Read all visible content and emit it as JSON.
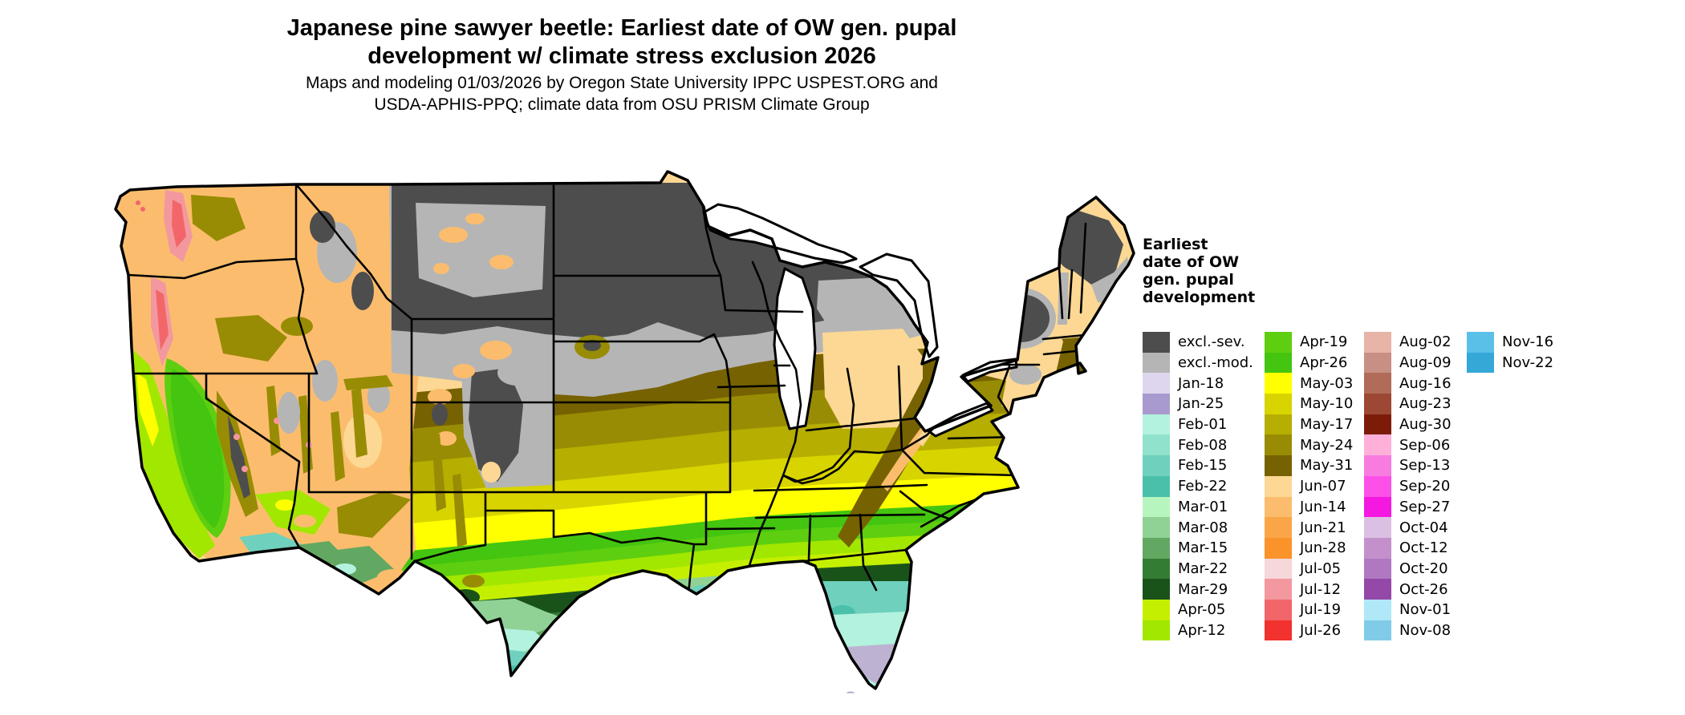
{
  "title": {
    "line1": "Japanese pine sawyer beetle: Earliest date of OW gen. pupal",
    "line2": "development w/ climate stress exclusion 2026"
  },
  "subtitle": {
    "line1": "Maps and modeling 01/03/2026 by Oregon State University IPPC USPEST.ORG and",
    "line2": "USDA-APHIS-PPQ; climate data from OSU PRISM Climate Group"
  },
  "legend": {
    "title_lines": [
      "Earliest",
      "date of OW",
      "gen. pupal",
      "development"
    ],
    "columns": [
      [
        {
          "label": "excl.-sev.",
          "color": "#4d4d4d"
        },
        {
          "label": "excl.-mod.",
          "color": "#b5b5b5"
        },
        {
          "label": "Jan-18",
          "color": "#ded6ee"
        },
        {
          "label": "Jan-25",
          "color": "#a89ace"
        },
        {
          "label": "Feb-01",
          "color": "#b2f2de"
        },
        {
          "label": "Feb-08",
          "color": "#90e2cc"
        },
        {
          "label": "Feb-15",
          "color": "#6ed0bd"
        },
        {
          "label": "Feb-22",
          "color": "#4ac0aa"
        },
        {
          "label": "Mar-01",
          "color": "#b6f6be"
        },
        {
          "label": "Mar-08",
          "color": "#90d295"
        },
        {
          "label": "Mar-15",
          "color": "#62a862"
        },
        {
          "label": "Mar-22",
          "color": "#327c34"
        },
        {
          "label": "Mar-29",
          "color": "#1a531a"
        },
        {
          "label": "Apr-05",
          "color": "#c5ef00"
        },
        {
          "label": "Apr-12",
          "color": "#a2e700"
        }
      ],
      [
        {
          "label": "Apr-19",
          "color": "#5ecf10"
        },
        {
          "label": "Apr-26",
          "color": "#44c510"
        },
        {
          "label": "May-03",
          "color": "#ffff00"
        },
        {
          "label": "May-10",
          "color": "#d8d400"
        },
        {
          "label": "May-17",
          "color": "#b6ae00"
        },
        {
          "label": "May-24",
          "color": "#988c04"
        },
        {
          "label": "May-31",
          "color": "#766200"
        },
        {
          "label": "Jun-07",
          "color": "#fcd894"
        },
        {
          "label": "Jun-14",
          "color": "#fbbd6d"
        },
        {
          "label": "Jun-21",
          "color": "#faa648"
        },
        {
          "label": "Jun-28",
          "color": "#f9932a"
        },
        {
          "label": "Jul-05",
          "color": "#f6d7da"
        },
        {
          "label": "Jul-12",
          "color": "#f3989e"
        },
        {
          "label": "Jul-19",
          "color": "#f2666a"
        },
        {
          "label": "Jul-26",
          "color": "#f2322e"
        }
      ],
      [
        {
          "label": "Aug-02",
          "color": "#e8b4a8"
        },
        {
          "label": "Aug-09",
          "color": "#c89084"
        },
        {
          "label": "Aug-16",
          "color": "#b06c58"
        },
        {
          "label": "Aug-23",
          "color": "#9c4834"
        },
        {
          "label": "Aug-30",
          "color": "#7c1c08"
        },
        {
          "label": "Sep-06",
          "color": "#ffb0d8"
        },
        {
          "label": "Sep-13",
          "color": "#f87ce0"
        },
        {
          "label": "Sep-20",
          "color": "#fc50e8"
        },
        {
          "label": "Sep-27",
          "color": "#f518e0"
        },
        {
          "label": "Oct-04",
          "color": "#dcc0e4"
        },
        {
          "label": "Oct-12",
          "color": "#c490cc"
        },
        {
          "label": "Oct-20",
          "color": "#b078c0"
        },
        {
          "label": "Oct-26",
          "color": "#9448a8"
        },
        {
          "label": "Nov-01",
          "color": "#b0e8f8"
        },
        {
          "label": "Nov-08",
          "color": "#80cce8"
        }
      ],
      [
        {
          "label": "Nov-16",
          "color": "#5bc0e8"
        },
        {
          "label": "Nov-22",
          "color": "#35a8d8"
        }
      ]
    ]
  }
}
